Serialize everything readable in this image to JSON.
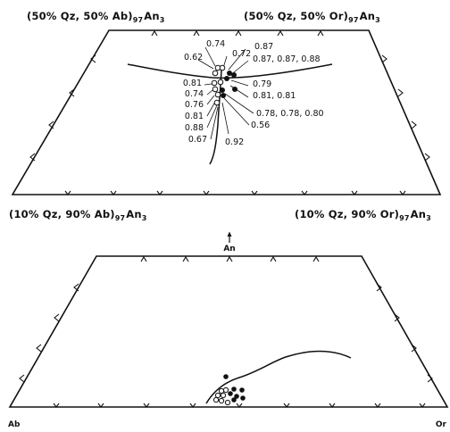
{
  "top_diagram": {
    "corners": {
      "top_left": {
        "main": "(50% Qz, 50% Ab)",
        "sub": "97",
        "tail": "An",
        "tail_sub": "3"
      },
      "top_right": {
        "main": "(50% Qz, 50% Or)",
        "sub": "97",
        "tail": "An",
        "tail_sub": "3"
      },
      "bottom_left": {
        "main": "(10% Qz, 90% Ab)",
        "sub": "97",
        "tail": "An",
        "tail_sub": "3"
      },
      "bottom_right": {
        "main": "(10% Qz, 90% Or)",
        "sub": "97",
        "tail": "An",
        "tail_sub": "3"
      }
    },
    "value_labels": [
      {
        "text": "0.74",
        "side": "left"
      },
      {
        "text": "0.62",
        "side": "left"
      },
      {
        "text": "0.72",
        "side": "right"
      },
      {
        "text": "0.87",
        "side": "right"
      },
      {
        "text": "0.87, 0.87, 0.88",
        "side": "right"
      },
      {
        "text": "0.79",
        "side": "right"
      },
      {
        "text": "0.81, 0.81",
        "side": "right"
      },
      {
        "text": "0.81",
        "side": "left"
      },
      {
        "text": "0.74",
        "side": "left"
      },
      {
        "text": "0.76",
        "side": "left"
      },
      {
        "text": "0.81",
        "side": "left"
      },
      {
        "text": "0.88",
        "side": "left"
      },
      {
        "text": "0.67",
        "side": "left"
      },
      {
        "text": "0.78, 0.78, 0.80",
        "side": "right"
      },
      {
        "text": "0.56",
        "side": "right"
      },
      {
        "text": "0.92",
        "side": "right"
      }
    ],
    "point_types": [
      "open circle",
      "filled circle"
    ]
  },
  "bottom_diagram": {
    "apex_label": "An",
    "left_label": "Ab",
    "right_label": "Or"
  }
}
